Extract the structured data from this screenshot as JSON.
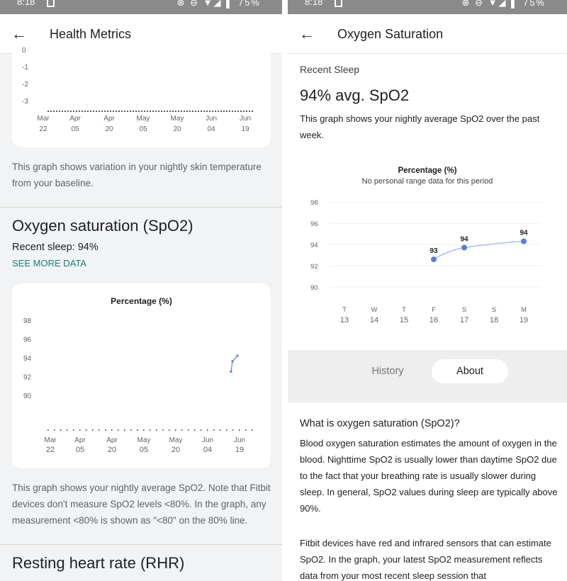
{
  "status_left": {
    "time": "8:18",
    "battery": "75%",
    "icons": "⊗ ⊖ ▼◢ ▌"
  },
  "status_right": {
    "time": "8:18",
    "battery": "75%",
    "icons": "⊗ ⊖ ▼◢ ▌"
  },
  "left": {
    "title": "Health Metrics",
    "temp_chart": {
      "y_ticks": [
        "0",
        "-1",
        "-2",
        "-3"
      ],
      "x_ticks": [
        [
          "Mar",
          "22"
        ],
        [
          "Apr",
          "05"
        ],
        [
          "Apr",
          "20"
        ],
        [
          "May",
          "05"
        ],
        [
          "May",
          "20"
        ],
        [
          "Jun",
          "04"
        ],
        [
          "Jun",
          "19"
        ]
      ]
    },
    "temp_desc": "This graph shows variation in your nightly skin temperature from your baseline.",
    "spo2_title": "Oxygen saturation (SpO2)",
    "spo2_recent": "Recent sleep: 94%",
    "see_more": "SEE MORE DATA",
    "spo2_desc": "This graph shows your nightly average SpO2. Note that Fitbit devices don't measure SpO2 levels <80%. In the graph, any measurement <80% is shown as \"<80\" on the 80% line.",
    "rhr_title": "Resting heart rate (RHR)"
  },
  "right": {
    "title": "Oxygen Saturation",
    "recent_label": "Recent Sleep",
    "avg": "94% avg. SpO2",
    "desc": "This graph shows your nightly average SpO2 over the past week.",
    "tab_history": "History",
    "tab_about": "About",
    "what_title": "What is oxygen saturation (SpO2)?",
    "what_p1": "Blood oxygen saturation estimates the amount of oxygen in the blood. Nighttime SpO2 is usually lower than daytime SpO2 due to the fact that your breathing rate is usually slower during sleep. In general, SpO2 values during sleep are typically above 90%.",
    "what_p2": "Fitbit devices have red and infrared sensors that can estimate SpO2. In the graph, your latest SpO2 measurement reflects data from your most recent sleep session that"
  },
  "chart_data": [
    {
      "type": "line",
      "title": "Percentage (%)",
      "y_ticks": [
        98,
        96,
        94,
        92,
        90
      ],
      "ylim": [
        89,
        99
      ],
      "x_tick_labels": [
        [
          "Mar",
          "22"
        ],
        [
          "Apr",
          "05"
        ],
        [
          "Apr",
          "20"
        ],
        [
          "May",
          "05"
        ],
        [
          "May",
          "20"
        ],
        [
          "Jun",
          "04"
        ],
        [
          "Jun",
          "19"
        ]
      ],
      "points": [
        {
          "x": "Jun 16",
          "y": 92.6
        },
        {
          "x": "Jun 17",
          "y": 93.7
        },
        {
          "x": "Jun 19",
          "y": 94.3
        }
      ],
      "color": "#5b7fd0"
    },
    {
      "type": "line",
      "title": "Percentage (%)",
      "subtitle": "No personal range data for this period",
      "y_ticks": [
        98,
        96,
        94,
        92,
        90
      ],
      "ylim": [
        89,
        99
      ],
      "categories": [
        [
          "T",
          "13"
        ],
        [
          "W",
          "14"
        ],
        [
          "T",
          "15"
        ],
        [
          "F",
          "16"
        ],
        [
          "S",
          "17"
        ],
        [
          "S",
          "18"
        ],
        [
          "M",
          "19"
        ]
      ],
      "series": [
        {
          "values": [
            null,
            null,
            null,
            93,
            94,
            null,
            94
          ],
          "plot_values": [
            null,
            null,
            null,
            92.6,
            93.7,
            null,
            94.3
          ]
        }
      ],
      "data_labels": [
        "93",
        "94",
        "94"
      ],
      "color": "#5b7fd0",
      "line_color": "#a9bff0"
    }
  ],
  "colors": {
    "accent": "#1a7f7a",
    "line": "#5b7fd0"
  }
}
